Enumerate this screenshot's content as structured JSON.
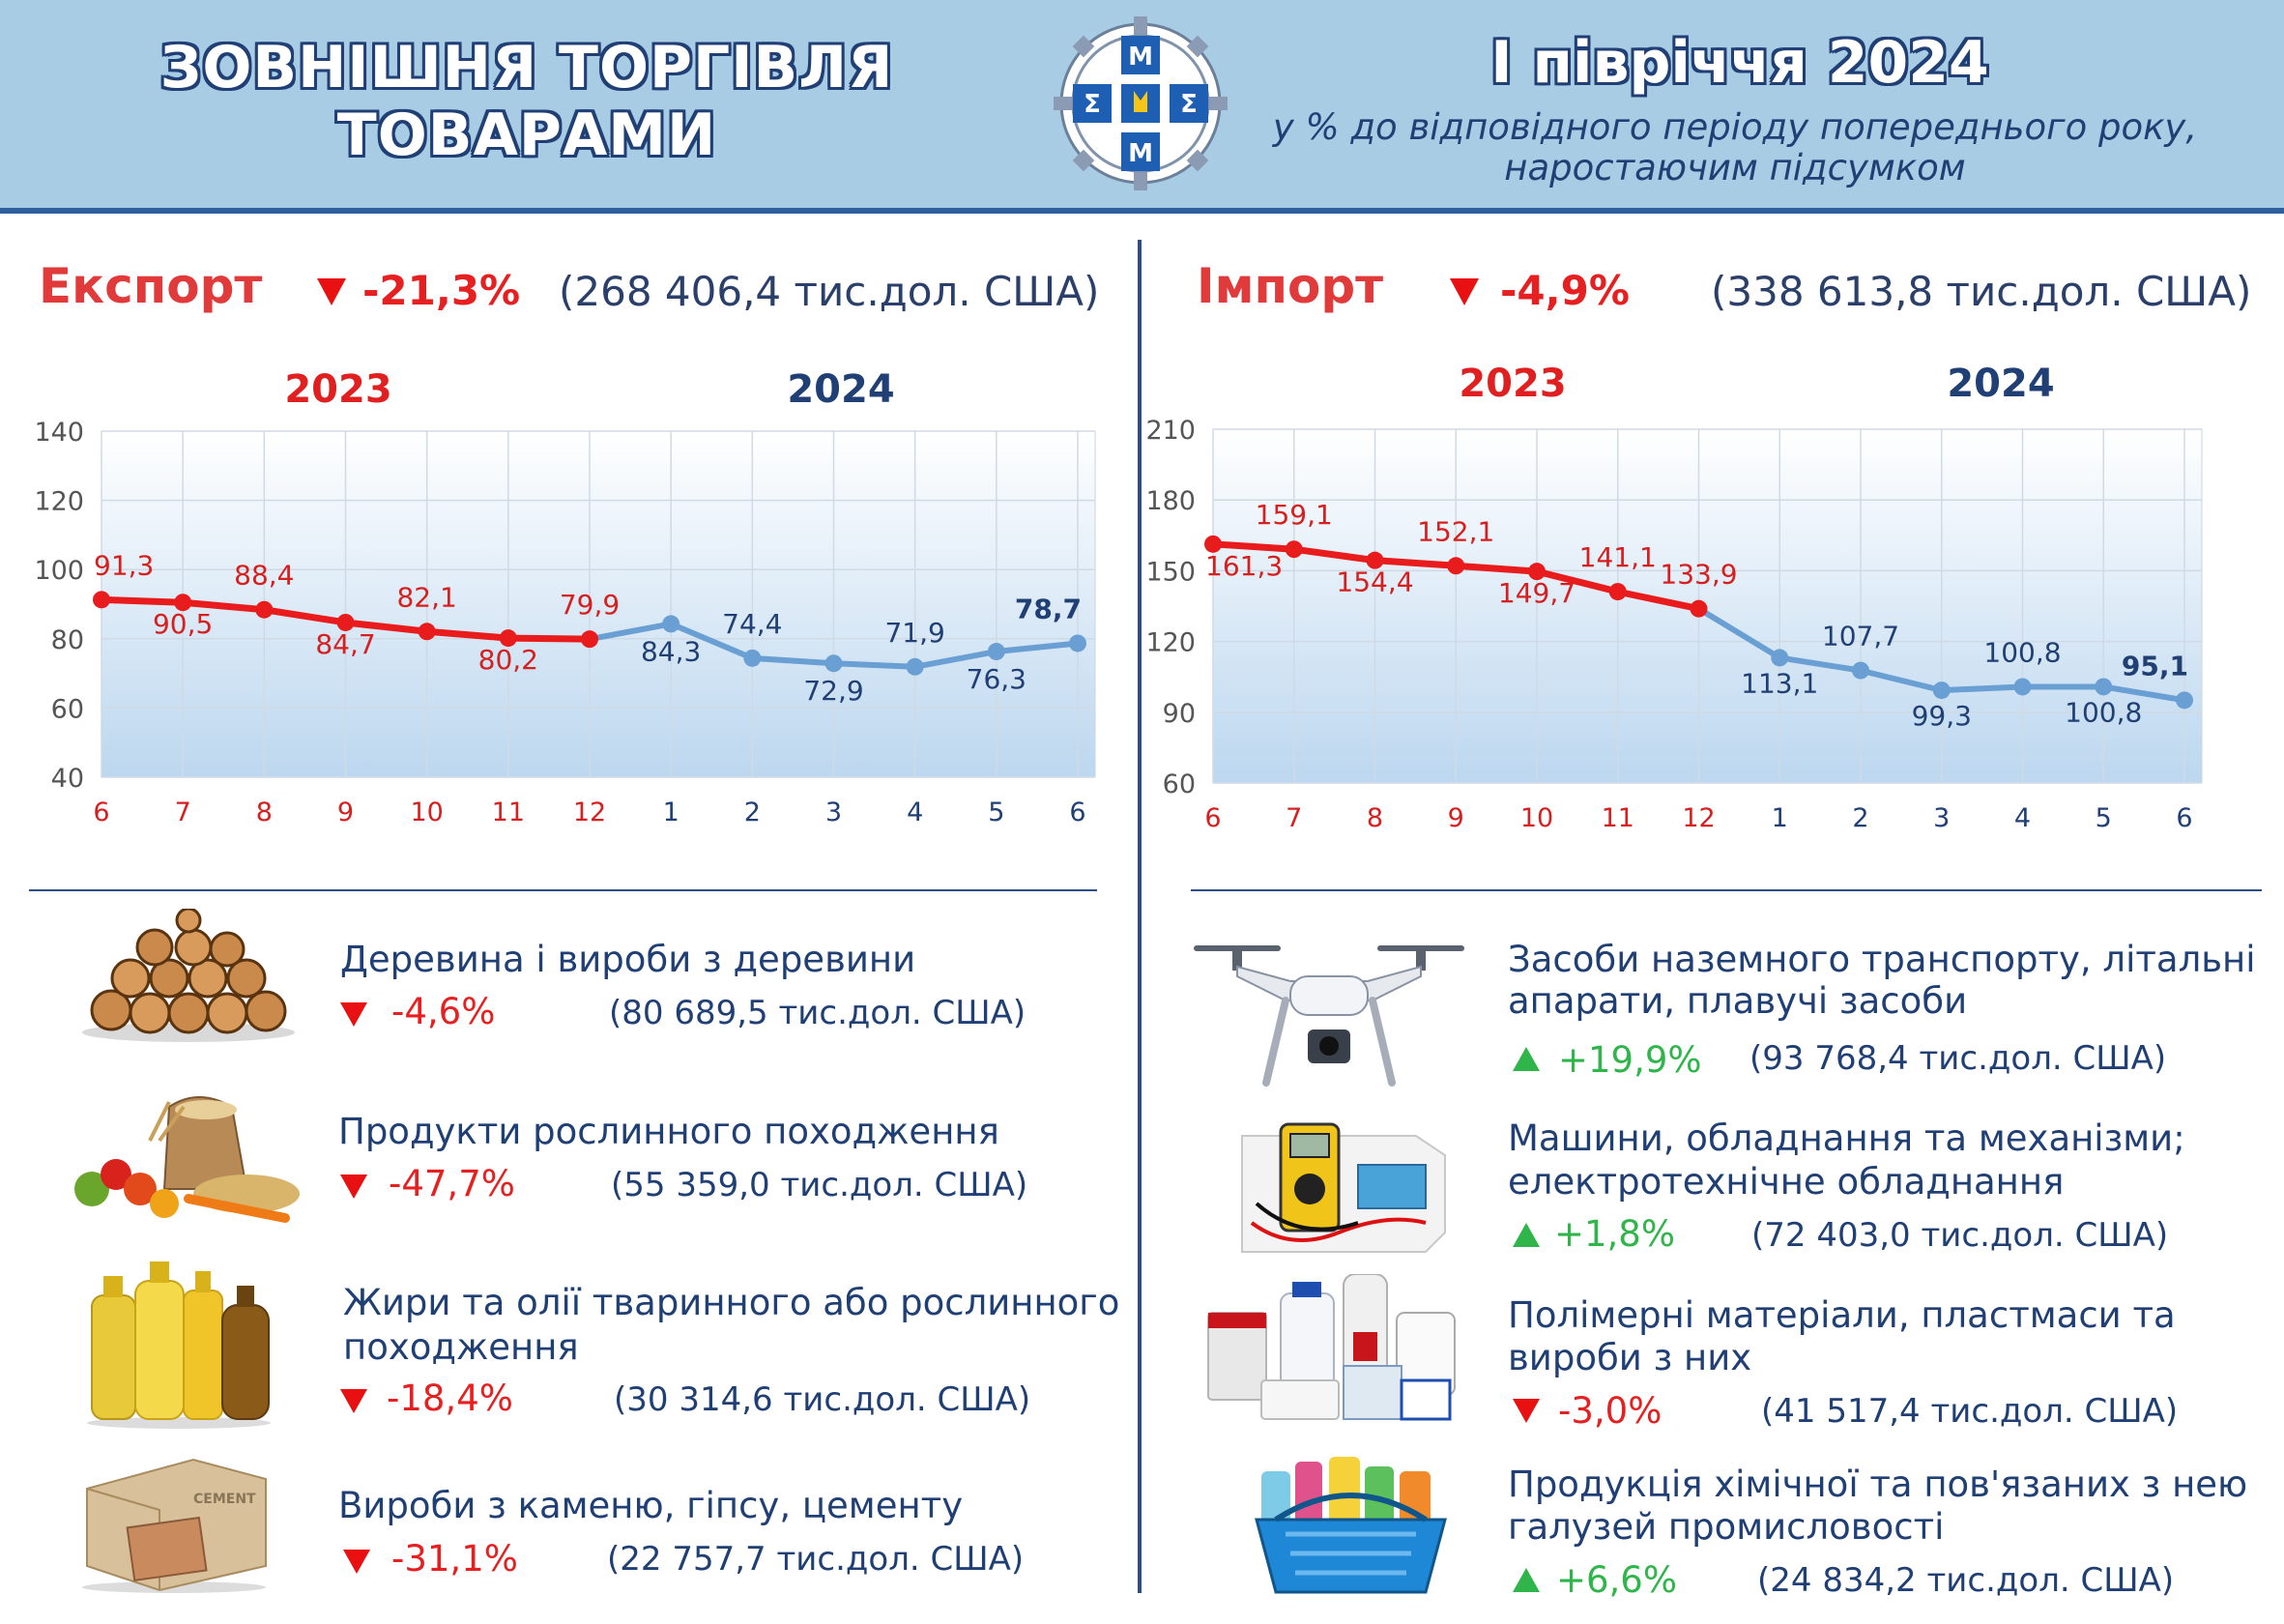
{
  "header": {
    "title_line1": "ЗОВНІШНЯ ТОРГІВЛЯ",
    "title_line2": "ТОВАРАМИ",
    "period": "І півріччя 2024",
    "subtitle_line1": "у % до відповідного періоду попереднього року,",
    "subtitle_line2": "наростаючим підсумком"
  },
  "export": {
    "title": "Експорт",
    "change": "-21,3%",
    "amount": "(268 406,4 тис.дол. США)"
  },
  "import": {
    "title": "Імпорт",
    "change": "-4,9%",
    "amount": "(338 613,8 тис.дол. США)"
  },
  "chart_data": [
    {
      "type": "line",
      "x": [
        "6",
        "7",
        "8",
        "9",
        "10",
        "11",
        "12",
        "1",
        "2",
        "3",
        "4",
        "5",
        "6"
      ],
      "year_labels": [
        "2023",
        "2024"
      ],
      "ylim": [
        40,
        140
      ],
      "yticks": [
        40,
        60,
        80,
        100,
        120,
        140
      ],
      "grid": true,
      "series": [
        {
          "values": [
            91.3,
            90.5,
            88.4,
            84.7,
            82.1,
            80.2,
            79.9,
            null,
            null,
            null,
            null,
            null,
            null
          ],
          "color": "#e81c1c"
        },
        {
          "values": [
            null,
            null,
            null,
            null,
            null,
            null,
            79.9,
            84.3,
            74.4,
            72.9,
            71.9,
            76.3,
            78.7
          ],
          "color": "#6a9fd4"
        }
      ],
      "labels": [
        "91,3",
        "90,5",
        "88,4",
        "84,7",
        "82,1",
        "80,2",
        "79,9",
        "84,3",
        "74,4",
        "72,9",
        "71,9",
        "76,3",
        "78,7"
      ]
    },
    {
      "type": "line",
      "x": [
        "6",
        "7",
        "8",
        "9",
        "10",
        "11",
        "12",
        "1",
        "2",
        "3",
        "4",
        "5",
        "6"
      ],
      "year_labels": [
        "2023",
        "2024"
      ],
      "ylim": [
        60,
        210
      ],
      "yticks": [
        60,
        90,
        120,
        150,
        180,
        210
      ],
      "grid": true,
      "series": [
        {
          "values": [
            161.3,
            159.1,
            154.4,
            152.1,
            149.7,
            141.1,
            133.9,
            null,
            null,
            null,
            null,
            null,
            null
          ],
          "color": "#e81c1c"
        },
        {
          "values": [
            null,
            null,
            null,
            null,
            null,
            null,
            133.9,
            113.1,
            107.7,
            99.3,
            100.8,
            100.8,
            95.1
          ],
          "color": "#6a9fd4"
        }
      ],
      "labels": [
        "161,3",
        "159,1",
        "154,4",
        "152,1",
        "149,7",
        "141,1",
        "133,9",
        "113,1",
        "107,7",
        "99,3",
        "100,8",
        "100,8",
        "95,1"
      ]
    }
  ],
  "export_categories": [
    {
      "title": "Деревина і вироби з деревини",
      "change": "-4,6%",
      "direction": "down",
      "amount": "(80 689,5 тис.дол. США)",
      "icon": "firewood-icon"
    },
    {
      "title": "Продукти рослинного походження",
      "change": "-47,7%",
      "direction": "down",
      "amount": "(55 359,0 тис.дол. США)",
      "icon": "vegetables-grain-icon"
    },
    {
      "title_line1": "Жири та олії тваринного або рослинного",
      "title_line2": "походження",
      "change": "-18,4%",
      "direction": "down",
      "amount": "(30 314,6 тис.дол. США)",
      "icon": "oil-bottles-icon"
    },
    {
      "title": "Вироби з каменю, гіпсу, цементу",
      "change": "-31,1%",
      "direction": "down",
      "amount": "(22 757,7 тис.дол. США)",
      "icon": "cement-bags-icon",
      "icon_text": "CEMENT"
    }
  ],
  "import_categories": [
    {
      "title_line1": "Засоби наземного транспорту, літальні",
      "title_line2": "апарати, плавучі засоби",
      "change": "+19,9%",
      "direction": "up",
      "amount": "(93 768,4 тис.дол. США)",
      "icon": "drone-icon"
    },
    {
      "title_line1": "Машини, обладнання та механізми;",
      "title_line2": "електротехнічне обладнання",
      "change": "+1,8%",
      "direction": "up",
      "amount": "(72 403,0 тис.дол. США)",
      "icon": "multimeter-icon"
    },
    {
      "title_line1": "Полімерні матеріали, пластмаси та",
      "title_line2": "вироби з них",
      "change": "-3,0%",
      "direction": "down",
      "amount": "(41 517,4 тис.дол. США)",
      "icon": "plastic-containers-icon"
    },
    {
      "title_line1": "Продукція хімічної та пов'язаних з нею",
      "title_line2": "галузей промисловості",
      "change": "+6,6%",
      "direction": "up",
      "amount": "(24 834,2 тис.дол. США)",
      "icon": "cleaning-products-icon"
    }
  ],
  "colors": {
    "header_bg": "#a8cce4",
    "navy": "#1f3f75",
    "red": "#e62020",
    "green": "#2fb54a",
    "series_2023": "#e81c1c",
    "series_2024": "#6a9fd4"
  }
}
